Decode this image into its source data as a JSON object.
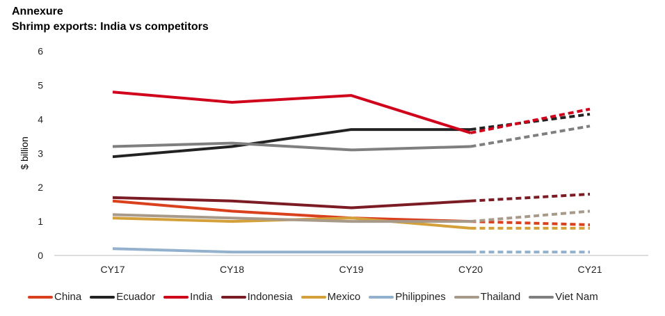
{
  "header": {
    "title": "Annexure",
    "subtitle": "Shrimp exports: India vs competitors"
  },
  "chart_data": {
    "type": "line",
    "title": "Shrimp exports: India vs competitors",
    "xlabel": "",
    "ylabel": "$ billion",
    "categories": [
      "CY17",
      "CY18",
      "CY19",
      "CY20",
      "CY21"
    ],
    "ylim": [
      0,
      6
    ],
    "yticks": [
      "0",
      "1",
      "2",
      "3",
      "4",
      "5",
      "6"
    ],
    "grid": false,
    "legend": "bottom",
    "projected_from": "CY20",
    "series": [
      {
        "name": "China",
        "color": "#d9411e",
        "values": [
          1.6,
          1.3,
          1.1,
          1.0,
          0.9
        ]
      },
      {
        "name": "Ecuador",
        "color": "#222222",
        "values": [
          2.9,
          3.2,
          3.7,
          3.7,
          4.15
        ]
      },
      {
        "name": "India",
        "color": "#d0021b",
        "values": [
          4.8,
          4.5,
          4.7,
          3.6,
          4.3
        ]
      },
      {
        "name": "Indonesia",
        "color": "#7b1c25",
        "values": [
          1.7,
          1.6,
          1.4,
          1.6,
          1.8
        ]
      },
      {
        "name": "Mexico",
        "color": "#d4a03a",
        "values": [
          1.1,
          1.0,
          1.1,
          0.8,
          0.8
        ]
      },
      {
        "name": "Philippines",
        "color": "#93b1cc",
        "values": [
          0.2,
          0.1,
          0.1,
          0.1,
          0.1
        ]
      },
      {
        "name": "Thailand",
        "color": "#a89a8a",
        "values": [
          1.2,
          1.1,
          1.0,
          1.0,
          1.3
        ]
      },
      {
        "name": "Viet Nam",
        "color": "#7f7f7f",
        "values": [
          3.2,
          3.3,
          3.1,
          3.2,
          3.8
        ]
      }
    ]
  }
}
